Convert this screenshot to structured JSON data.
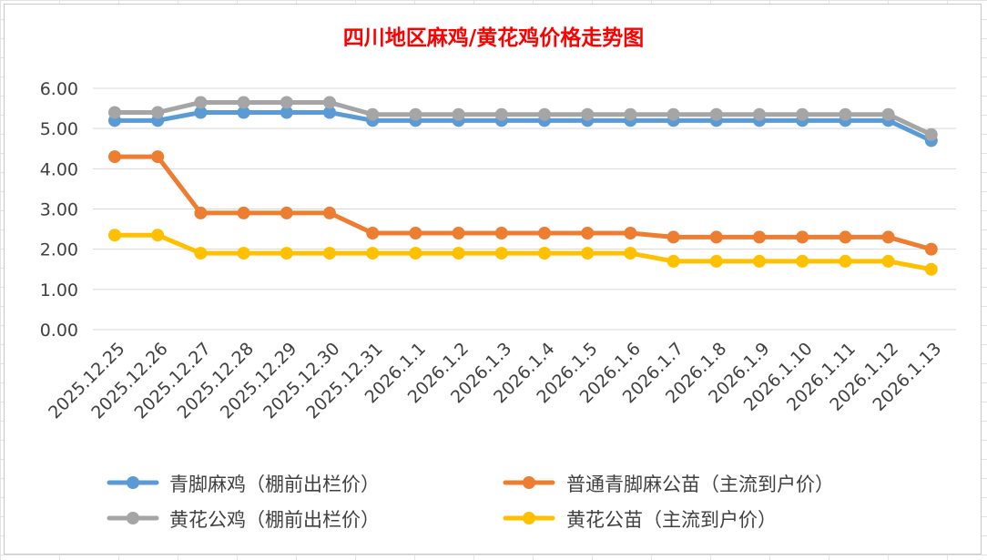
{
  "chart_data": {
    "type": "line",
    "title": "四川地区麻鸡/黄花鸡价格走势图",
    "xlabel": "",
    "ylabel": "",
    "ylim": [
      0,
      6
    ],
    "yticks": [
      "0.00",
      "1.00",
      "2.00",
      "3.00",
      "4.00",
      "5.00",
      "6.00"
    ],
    "categories": [
      "2025.12.25",
      "2025.12.26",
      "2025.12.27",
      "2025.12.28",
      "2025.12.29",
      "2025.12.30",
      "2025.12.31",
      "2026.1.1",
      "2026.1.2",
      "2026.1.3",
      "2026.1.4",
      "2026.1.5",
      "2026.1.6",
      "2026.1.7",
      "2026.1.8",
      "2026.1.9",
      "2026.1.10",
      "2026.1.11",
      "2026.1.12",
      "2026.1.13"
    ],
    "grid": true,
    "legend_position": "bottom",
    "series": [
      {
        "name": "青脚麻鸡（棚前出栏价）",
        "color": "#5b9bd5",
        "values": [
          5.2,
          5.2,
          5.4,
          5.4,
          5.4,
          5.4,
          5.2,
          5.2,
          5.2,
          5.2,
          5.2,
          5.2,
          5.2,
          5.2,
          5.2,
          5.2,
          5.2,
          5.2,
          5.2,
          4.7
        ]
      },
      {
        "name": "普通青脚麻公苗（主流到户价）",
        "color": "#ed7d31",
        "values": [
          4.3,
          4.3,
          2.9,
          2.9,
          2.9,
          2.9,
          2.4,
          2.4,
          2.4,
          2.4,
          2.4,
          2.4,
          2.4,
          2.3,
          2.3,
          2.3,
          2.3,
          2.3,
          2.3,
          2.0
        ]
      },
      {
        "name": "黄花公鸡（棚前出栏价）",
        "color": "#a5a5a5",
        "values": [
          5.4,
          5.4,
          5.65,
          5.65,
          5.65,
          5.65,
          5.35,
          5.35,
          5.35,
          5.35,
          5.35,
          5.35,
          5.35,
          5.35,
          5.35,
          5.35,
          5.35,
          5.35,
          5.35,
          4.85
        ]
      },
      {
        "name": "黄花公苗（主流到户价）",
        "color": "#ffc000",
        "values": [
          2.35,
          2.35,
          1.9,
          1.9,
          1.9,
          1.9,
          1.9,
          1.9,
          1.9,
          1.9,
          1.9,
          1.9,
          1.9,
          1.7,
          1.7,
          1.7,
          1.7,
          1.7,
          1.7,
          1.5
        ]
      }
    ]
  }
}
